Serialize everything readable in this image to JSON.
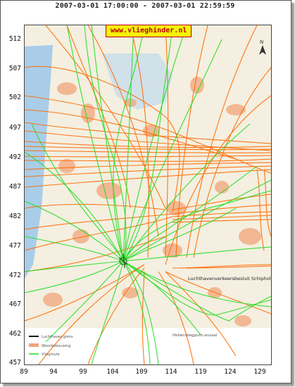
{
  "title": "2007-03-01 17:00:00 - 2007-03-01 22:59:59",
  "badge": "www.vlieghinder.nl",
  "y_ticks": [
    "512",
    "507",
    "502",
    "497",
    "492",
    "487",
    "482",
    "477",
    "472",
    "467",
    "462",
    "457"
  ],
  "x_ticks": [
    "89",
    "94",
    "99",
    "104",
    "109",
    "114",
    "119",
    "124",
    "129"
  ],
  "map_labels": {
    "region": "Luchthavenverkeersbesluit Schiphol",
    "legend_title": "Hellenvliegpunt-ansaal",
    "legend_a": "Luchthaven grens",
    "legend_b": "Woonbebouwing",
    "legend_c": "Vliegroute",
    "north": "N"
  },
  "colors": {
    "arrival": "#ff6a00",
    "departure": "#22dd22",
    "urban": "#f2a57a",
    "water": "#a9cde8",
    "land": "#f4efe0",
    "badge_bg": "#f5f50a",
    "badge_text": "#c00000"
  }
}
